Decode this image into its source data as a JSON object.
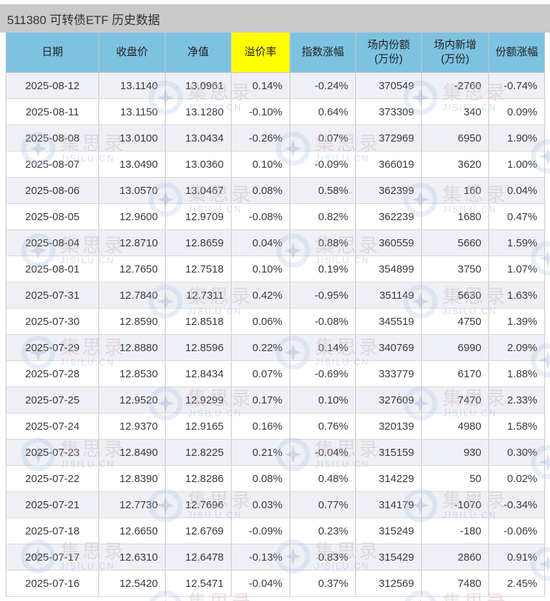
{
  "title": "511380 可转债ETF 历史数据",
  "watermark": {
    "brand": "集思录",
    "domain": "JISILU.CN"
  },
  "colors": {
    "title_bar_bg": "#c9c9c9",
    "header_bg": "#7dc2e1",
    "premium_highlight_bg": "#ffff00",
    "row_alt_bg": "#efeff6",
    "row_bg": "#ffffff",
    "text": "#3a3a3a"
  },
  "table": {
    "columns": [
      {
        "key": "date",
        "label": "日期",
        "sub": "",
        "highlight": false
      },
      {
        "key": "close",
        "label": "收盘价",
        "sub": "",
        "highlight": false
      },
      {
        "key": "nav",
        "label": "净值",
        "sub": "",
        "highlight": false
      },
      {
        "key": "premium",
        "label": "溢价率",
        "sub": "",
        "highlight": true
      },
      {
        "key": "index_change",
        "label": "指数涨幅",
        "sub": "",
        "highlight": false
      },
      {
        "key": "shares",
        "label": "场内份额",
        "sub": "(万份)",
        "highlight": false
      },
      {
        "key": "new_shares",
        "label": "场内新增",
        "sub": "(万份)",
        "highlight": false
      },
      {
        "key": "share_change",
        "label": "份额涨幅",
        "sub": "",
        "highlight": false
      }
    ],
    "rows": [
      {
        "date": "2025-08-12",
        "close": "13.1140",
        "nav": "13.0961",
        "premium": "0.14%",
        "index_change": "-0.24%",
        "shares": "370549",
        "new_shares": "-2760",
        "share_change": "-0.74%"
      },
      {
        "date": "2025-08-11",
        "close": "13.1150",
        "nav": "13.1280",
        "premium": "-0.10%",
        "index_change": "0.64%",
        "shares": "373309",
        "new_shares": "340",
        "share_change": "0.09%"
      },
      {
        "date": "2025-08-08",
        "close": "13.0100",
        "nav": "13.0434",
        "premium": "-0.26%",
        "index_change": "0.07%",
        "shares": "372969",
        "new_shares": "6950",
        "share_change": "1.90%"
      },
      {
        "date": "2025-08-07",
        "close": "13.0490",
        "nav": "13.0360",
        "premium": "0.10%",
        "index_change": "-0.09%",
        "shares": "366019",
        "new_shares": "3620",
        "share_change": "1.00%"
      },
      {
        "date": "2025-08-06",
        "close": "13.0570",
        "nav": "13.0467",
        "premium": "0.08%",
        "index_change": "0.58%",
        "shares": "362399",
        "new_shares": "160",
        "share_change": "0.04%"
      },
      {
        "date": "2025-08-05",
        "close": "12.9600",
        "nav": "12.9709",
        "premium": "-0.08%",
        "index_change": "0.82%",
        "shares": "362239",
        "new_shares": "1680",
        "share_change": "0.47%"
      },
      {
        "date": "2025-08-04",
        "close": "12.8710",
        "nav": "12.8659",
        "premium": "0.04%",
        "index_change": "0.88%",
        "shares": "360559",
        "new_shares": "5660",
        "share_change": "1.59%"
      },
      {
        "date": "2025-08-01",
        "close": "12.7650",
        "nav": "12.7518",
        "premium": "0.10%",
        "index_change": "0.19%",
        "shares": "354899",
        "new_shares": "3750",
        "share_change": "1.07%"
      },
      {
        "date": "2025-07-31",
        "close": "12.7840",
        "nav": "12.7311",
        "premium": "0.42%",
        "index_change": "-0.95%",
        "shares": "351149",
        "new_shares": "5630",
        "share_change": "1.63%"
      },
      {
        "date": "2025-07-30",
        "close": "12.8590",
        "nav": "12.8518",
        "premium": "0.06%",
        "index_change": "-0.08%",
        "shares": "345519",
        "new_shares": "4750",
        "share_change": "1.39%"
      },
      {
        "date": "2025-07-29",
        "close": "12.8880",
        "nav": "12.8596",
        "premium": "0.22%",
        "index_change": "0.14%",
        "shares": "340769",
        "new_shares": "6990",
        "share_change": "2.09%"
      },
      {
        "date": "2025-07-28",
        "close": "12.8530",
        "nav": "12.8434",
        "premium": "0.07%",
        "index_change": "-0.69%",
        "shares": "333779",
        "new_shares": "6170",
        "share_change": "1.88%"
      },
      {
        "date": "2025-07-25",
        "close": "12.9520",
        "nav": "12.9299",
        "premium": "0.17%",
        "index_change": "0.10%",
        "shares": "327609",
        "new_shares": "7470",
        "share_change": "2.33%"
      },
      {
        "date": "2025-07-24",
        "close": "12.9370",
        "nav": "12.9165",
        "premium": "0.16%",
        "index_change": "0.76%",
        "shares": "320139",
        "new_shares": "4980",
        "share_change": "1.58%"
      },
      {
        "date": "2025-07-23",
        "close": "12.8490",
        "nav": "12.8225",
        "premium": "0.21%",
        "index_change": "-0.04%",
        "shares": "315159",
        "new_shares": "930",
        "share_change": "0.30%"
      },
      {
        "date": "2025-07-22",
        "close": "12.8390",
        "nav": "12.8286",
        "premium": "0.08%",
        "index_change": "0.48%",
        "shares": "314229",
        "new_shares": "50",
        "share_change": "0.02%"
      },
      {
        "date": "2025-07-21",
        "close": "12.7730",
        "nav": "12.7696",
        "premium": "0.03%",
        "index_change": "0.77%",
        "shares": "314179",
        "new_shares": "-1070",
        "share_change": "-0.34%"
      },
      {
        "date": "2025-07-18",
        "close": "12.6650",
        "nav": "12.6769",
        "premium": "-0.09%",
        "index_change": "0.23%",
        "shares": "315249",
        "new_shares": "-180",
        "share_change": "-0.06%"
      },
      {
        "date": "2025-07-17",
        "close": "12.6310",
        "nav": "12.6478",
        "premium": "-0.13%",
        "index_change": "0.83%",
        "shares": "315429",
        "new_shares": "2860",
        "share_change": "0.91%"
      },
      {
        "date": "2025-07-16",
        "close": "12.5420",
        "nav": "12.5471",
        "premium": "-0.04%",
        "index_change": "0.37%",
        "shares": "312569",
        "new_shares": "7480",
        "share_change": "2.45%"
      }
    ]
  }
}
